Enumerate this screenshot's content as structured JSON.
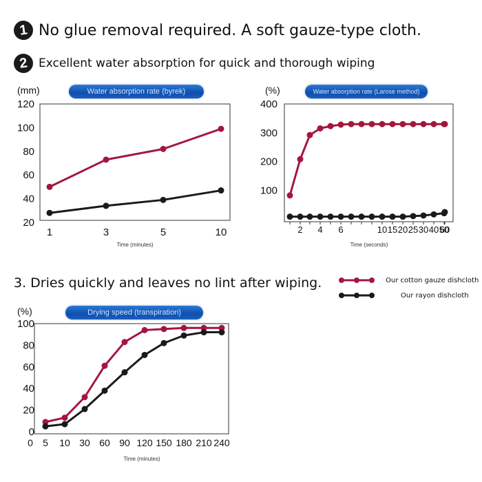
{
  "headings": {
    "h1": {
      "badge": "1",
      "text": "No glue removal required. A soft gauze-type cloth."
    },
    "h2": {
      "badge": "2",
      "text": "Excellent water absorption for quick and thorough wiping"
    },
    "h3": {
      "text": "3. Dries quickly and leaves no lint after wiping."
    }
  },
  "legend": {
    "cotton": "Our cotton gauze dishcloth",
    "rayon": "Our rayon dishcloth"
  },
  "colors": {
    "cotton": "#a3173f",
    "rayon": "#1a1a1a"
  },
  "chart_data": [
    {
      "id": "byrek",
      "type": "line",
      "title": "Water absorption rate (byrek)",
      "unit": "(mm)",
      "xlabel": "Time (minutes)",
      "categories": [
        "1",
        "3",
        "5",
        "10"
      ],
      "yticks": [
        20,
        40,
        60,
        80,
        100,
        120
      ],
      "ylim": [
        20,
        120
      ],
      "series": [
        {
          "name": "Our cotton gauze dishcloth",
          "values": [
            50,
            73,
            82,
            99
          ]
        },
        {
          "name": "Our rayon dishcloth",
          "values": [
            28,
            34,
            39,
            47
          ]
        }
      ]
    },
    {
      "id": "larose",
      "type": "line",
      "title": "Water absorption rate (Larose method)",
      "unit": "(%)",
      "xlabel": "Time (seconds)",
      "categories": [
        "1",
        "2",
        "3",
        "4",
        "5",
        "6",
        "7",
        "8",
        "9",
        "10",
        "15",
        "20",
        "25",
        "30",
        "40",
        "50",
        "60"
      ],
      "xtick_labels": [
        "2",
        "4",
        "6",
        "10",
        "15",
        "20",
        "25",
        "30",
        "40",
        "50",
        "60"
      ],
      "yticks": [
        100,
        200,
        300,
        400
      ],
      "ylim": [
        0,
        400
      ],
      "series": [
        {
          "name": "Our cotton gauze dishcloth",
          "values": [
            82,
            208,
            292,
            315,
            323,
            328,
            330,
            330,
            330,
            330,
            330,
            330,
            330,
            330,
            330,
            330,
            330
          ]
        },
        {
          "name": "Our rayon dishcloth",
          "values": [
            8,
            8,
            8,
            8,
            8,
            8,
            8,
            8,
            8,
            8,
            8,
            8,
            10,
            12,
            16,
            20,
            24
          ]
        }
      ]
    },
    {
      "id": "drying",
      "type": "line",
      "title": "Drying speed (transpiration)",
      "unit": "(%)",
      "xlabel": "Time (minutes)",
      "categories": [
        "5",
        "10",
        "30",
        "60",
        "90",
        "120",
        "150",
        "180",
        "210",
        "240"
      ],
      "yticks": [
        0,
        20,
        40,
        60,
        80,
        100
      ],
      "ylim": [
        0,
        100
      ],
      "series": [
        {
          "name": "Our cotton gauze dishcloth",
          "values": [
            9,
            13,
            32,
            61,
            83,
            94,
            95,
            96,
            96,
            96
          ]
        },
        {
          "name": "Our rayon dishcloth",
          "values": [
            5,
            7,
            21,
            38,
            55,
            71,
            82,
            89,
            92,
            92
          ]
        }
      ]
    }
  ]
}
